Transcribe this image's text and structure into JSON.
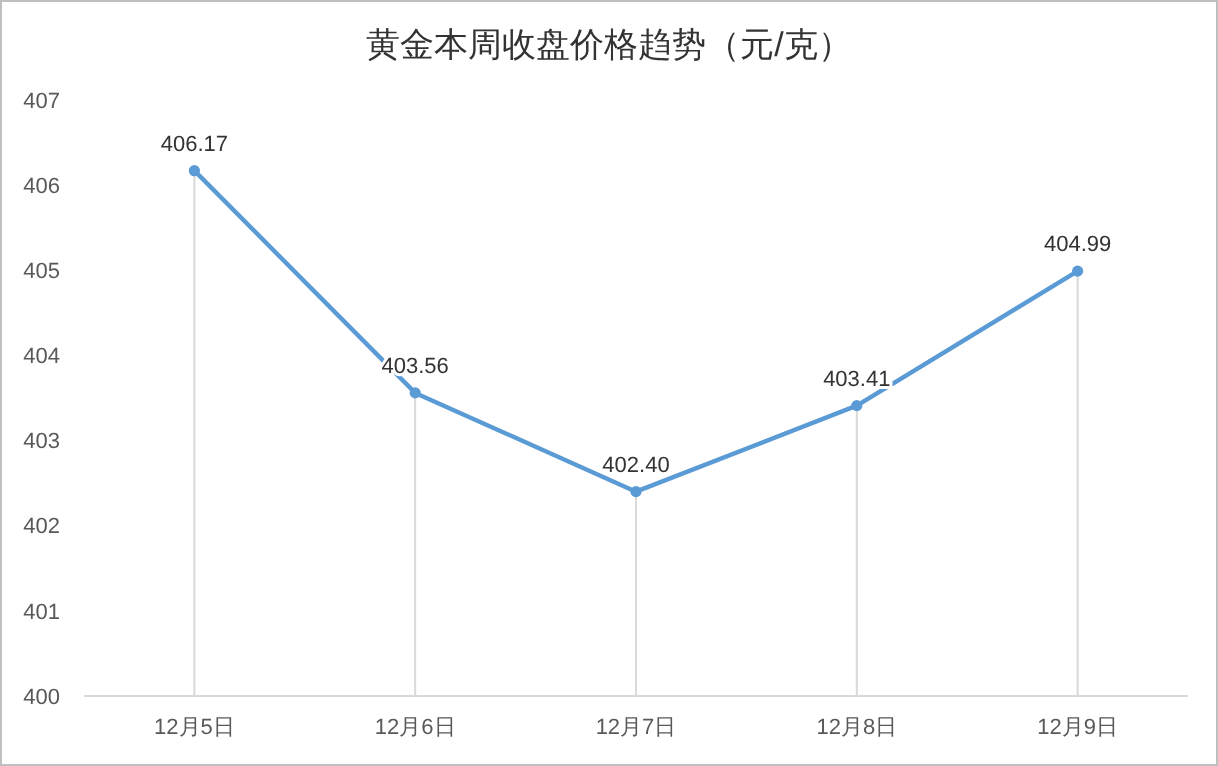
{
  "chart_data": {
    "type": "line",
    "title": "黄金本周收盘价格趋势（元/克）",
    "categories": [
      "12月5日",
      "12月6日",
      "12月7日",
      "12月8日",
      "12月9日"
    ],
    "series": [
      {
        "color": "#5b9bd5",
        "values": [
          406.17,
          403.56,
          402.4,
          403.41,
          404.99
        ]
      }
    ],
    "ylim": [
      400,
      407
    ],
    "yticks": [
      400,
      401,
      402,
      403,
      404,
      405,
      406,
      407
    ],
    "value_labels": [
      "406.17",
      "403.56",
      "402.40",
      "403.41",
      "404.99"
    ],
    "grid": "x",
    "marker": "circle",
    "line_style": "solid"
  }
}
